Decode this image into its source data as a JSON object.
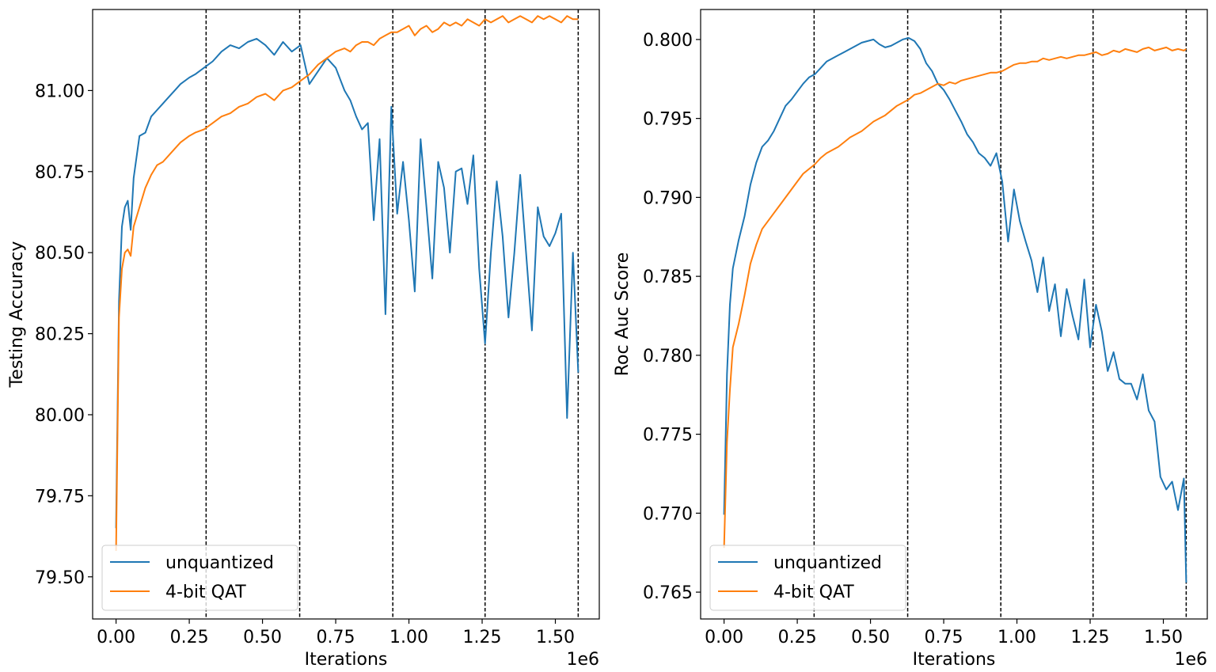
{
  "chart_data": [
    {
      "type": "line",
      "title": "",
      "xlabel": "Iterations",
      "ylabel": "Testing Accuracy",
      "x_offset_text": "1e6",
      "xlim": [
        -0.08,
        1.65
      ],
      "ylim": [
        79.37,
        81.25
      ],
      "xticks": [
        0.0,
        0.25,
        0.5,
        0.75,
        1.0,
        1.25,
        1.5
      ],
      "xtick_labels": [
        "0.00",
        "0.25",
        "0.50",
        "0.75",
        "1.00",
        "1.25",
        "1.50"
      ],
      "yticks": [
        79.5,
        79.75,
        80.0,
        80.25,
        80.5,
        80.75,
        81.0
      ],
      "ytick_labels": [
        "79.50",
        "79.75",
        "80.00",
        "80.25",
        "80.50",
        "80.75",
        "81.00"
      ],
      "vlines": [
        0.3075,
        0.627,
        0.945,
        1.26,
        1.578
      ],
      "legend": {
        "position": "lower-left",
        "entries": [
          "unquantized",
          "4-bit QAT"
        ]
      },
      "series": [
        {
          "name": "unquantized",
          "color": "#1f77b4",
          "x": [
            0.0,
            0.01,
            0.02,
            0.03,
            0.04,
            0.05,
            0.06,
            0.08,
            0.1,
            0.12,
            0.14,
            0.16,
            0.18,
            0.2,
            0.22,
            0.25,
            0.27,
            0.3,
            0.33,
            0.36,
            0.39,
            0.42,
            0.45,
            0.48,
            0.51,
            0.54,
            0.57,
            0.6,
            0.63,
            0.66,
            0.69,
            0.72,
            0.75,
            0.78,
            0.8,
            0.82,
            0.84,
            0.86,
            0.88,
            0.9,
            0.92,
            0.94,
            0.96,
            0.98,
            1.0,
            1.02,
            1.04,
            1.06,
            1.08,
            1.1,
            1.12,
            1.14,
            1.16,
            1.18,
            1.2,
            1.22,
            1.24,
            1.26,
            1.28,
            1.3,
            1.32,
            1.34,
            1.36,
            1.38,
            1.4,
            1.42,
            1.44,
            1.46,
            1.48,
            1.5,
            1.52,
            1.54,
            1.56,
            1.578
          ],
          "y": [
            79.65,
            80.35,
            80.58,
            80.64,
            80.66,
            80.57,
            80.73,
            80.86,
            80.87,
            80.92,
            80.94,
            80.96,
            80.98,
            81.0,
            81.02,
            81.04,
            81.05,
            81.07,
            81.09,
            81.12,
            81.14,
            81.13,
            81.15,
            81.16,
            81.14,
            81.11,
            81.15,
            81.12,
            81.14,
            81.02,
            81.06,
            81.1,
            81.07,
            81.0,
            80.97,
            80.92,
            80.88,
            80.9,
            80.6,
            80.85,
            80.31,
            80.95,
            80.62,
            80.78,
            80.6,
            80.38,
            80.85,
            80.64,
            80.42,
            80.78,
            80.7,
            80.5,
            80.75,
            80.76,
            80.65,
            80.8,
            80.45,
            80.22,
            80.5,
            80.72,
            80.55,
            80.3,
            80.5,
            80.74,
            80.5,
            80.26,
            80.64,
            80.55,
            80.52,
            80.56,
            80.62,
            79.99,
            80.5,
            80.13
          ]
        },
        {
          "name": "4-bit QAT",
          "color": "#ff7f0e",
          "x": [
            0.0,
            0.01,
            0.02,
            0.03,
            0.04,
            0.05,
            0.06,
            0.08,
            0.1,
            0.12,
            0.14,
            0.16,
            0.18,
            0.2,
            0.22,
            0.25,
            0.27,
            0.3,
            0.33,
            0.36,
            0.39,
            0.42,
            0.45,
            0.48,
            0.51,
            0.54,
            0.57,
            0.6,
            0.63,
            0.66,
            0.69,
            0.72,
            0.75,
            0.78,
            0.8,
            0.82,
            0.84,
            0.86,
            0.88,
            0.9,
            0.92,
            0.94,
            0.96,
            0.98,
            1.0,
            1.02,
            1.04,
            1.06,
            1.08,
            1.1,
            1.12,
            1.14,
            1.16,
            1.18,
            1.2,
            1.22,
            1.24,
            1.26,
            1.28,
            1.3,
            1.32,
            1.34,
            1.36,
            1.38,
            1.4,
            1.42,
            1.44,
            1.46,
            1.48,
            1.5,
            1.52,
            1.54,
            1.56,
            1.578
          ],
          "y": [
            79.58,
            80.3,
            80.45,
            80.5,
            80.51,
            80.49,
            80.58,
            80.64,
            80.7,
            80.74,
            80.77,
            80.78,
            80.8,
            80.82,
            80.84,
            80.86,
            80.87,
            80.88,
            80.9,
            80.92,
            80.93,
            80.95,
            80.96,
            80.98,
            80.99,
            80.97,
            81.0,
            81.01,
            81.03,
            81.05,
            81.08,
            81.1,
            81.12,
            81.13,
            81.12,
            81.14,
            81.15,
            81.15,
            81.14,
            81.16,
            81.17,
            81.18,
            81.18,
            81.19,
            81.2,
            81.17,
            81.19,
            81.2,
            81.18,
            81.19,
            81.21,
            81.2,
            81.21,
            81.2,
            81.22,
            81.21,
            81.2,
            81.22,
            81.21,
            81.22,
            81.23,
            81.21,
            81.22,
            81.23,
            81.22,
            81.21,
            81.23,
            81.22,
            81.23,
            81.22,
            81.21,
            81.23,
            81.22,
            81.22
          ]
        }
      ]
    },
    {
      "type": "line",
      "title": "",
      "xlabel": "Iterations",
      "ylabel": "Roc Auc Score",
      "x_offset_text": "1e6",
      "xlim": [
        -0.08,
        1.65
      ],
      "ylim": [
        0.7633,
        0.8019
      ],
      "xticks": [
        0.0,
        0.25,
        0.5,
        0.75,
        1.0,
        1.25,
        1.5
      ],
      "xtick_labels": [
        "0.00",
        "0.25",
        "0.50",
        "0.75",
        "1.00",
        "1.25",
        "1.50"
      ],
      "yticks": [
        0.765,
        0.77,
        0.775,
        0.78,
        0.785,
        0.79,
        0.795,
        0.8
      ],
      "ytick_labels": [
        "0.765",
        "0.770",
        "0.775",
        "0.780",
        "0.785",
        "0.790",
        "0.795",
        "0.800"
      ],
      "vlines": [
        0.3075,
        0.627,
        0.945,
        1.26,
        1.578
      ],
      "legend": {
        "position": "lower-left",
        "entries": [
          "unquantized",
          "4-bit QAT"
        ]
      },
      "series": [
        {
          "name": "unquantized",
          "color": "#1f77b4",
          "x": [
            0.0,
            0.01,
            0.02,
            0.03,
            0.05,
            0.07,
            0.09,
            0.11,
            0.13,
            0.15,
            0.17,
            0.19,
            0.21,
            0.23,
            0.25,
            0.27,
            0.29,
            0.31,
            0.33,
            0.35,
            0.37,
            0.39,
            0.41,
            0.43,
            0.45,
            0.47,
            0.49,
            0.51,
            0.53,
            0.55,
            0.57,
            0.59,
            0.61,
            0.63,
            0.65,
            0.67,
            0.69,
            0.71,
            0.73,
            0.75,
            0.77,
            0.79,
            0.81,
            0.83,
            0.85,
            0.87,
            0.89,
            0.91,
            0.93,
            0.95,
            0.97,
            0.99,
            1.01,
            1.03,
            1.05,
            1.07,
            1.09,
            1.11,
            1.13,
            1.15,
            1.17,
            1.19,
            1.21,
            1.23,
            1.25,
            1.27,
            1.29,
            1.31,
            1.33,
            1.35,
            1.37,
            1.39,
            1.41,
            1.43,
            1.45,
            1.47,
            1.49,
            1.51,
            1.53,
            1.55,
            1.57,
            1.578
          ],
          "y": [
            0.7699,
            0.7788,
            0.7832,
            0.7855,
            0.7873,
            0.7888,
            0.7908,
            0.7922,
            0.7932,
            0.7936,
            0.7942,
            0.795,
            0.7958,
            0.7962,
            0.7967,
            0.7972,
            0.7976,
            0.7978,
            0.7982,
            0.7986,
            0.7988,
            0.799,
            0.7992,
            0.7994,
            0.7996,
            0.7998,
            0.7999,
            0.8,
            0.7997,
            0.7995,
            0.7996,
            0.7998,
            0.8,
            0.8001,
            0.7999,
            0.7994,
            0.7985,
            0.798,
            0.7972,
            0.7968,
            0.7962,
            0.7955,
            0.7948,
            0.794,
            0.7935,
            0.7928,
            0.7925,
            0.792,
            0.7928,
            0.791,
            0.7872,
            0.7905,
            0.7885,
            0.7872,
            0.786,
            0.784,
            0.7862,
            0.7828,
            0.7845,
            0.7812,
            0.7842,
            0.7825,
            0.781,
            0.7848,
            0.7805,
            0.7832,
            0.7815,
            0.779,
            0.7802,
            0.7785,
            0.7782,
            0.7782,
            0.7772,
            0.7788,
            0.7765,
            0.7758,
            0.7723,
            0.7715,
            0.772,
            0.7702,
            0.7722,
            0.7656
          ]
        },
        {
          "name": "4-bit QAT",
          "color": "#ff7f0e",
          "x": [
            0.0,
            0.01,
            0.02,
            0.03,
            0.05,
            0.07,
            0.09,
            0.11,
            0.13,
            0.15,
            0.17,
            0.19,
            0.21,
            0.23,
            0.25,
            0.27,
            0.29,
            0.31,
            0.33,
            0.35,
            0.37,
            0.39,
            0.41,
            0.43,
            0.45,
            0.47,
            0.49,
            0.51,
            0.53,
            0.55,
            0.57,
            0.59,
            0.61,
            0.63,
            0.65,
            0.67,
            0.69,
            0.71,
            0.73,
            0.75,
            0.77,
            0.79,
            0.81,
            0.83,
            0.85,
            0.87,
            0.89,
            0.91,
            0.93,
            0.95,
            0.97,
            0.99,
            1.01,
            1.03,
            1.05,
            1.07,
            1.09,
            1.11,
            1.13,
            1.15,
            1.17,
            1.19,
            1.21,
            1.23,
            1.25,
            1.27,
            1.29,
            1.31,
            1.33,
            1.35,
            1.37,
            1.39,
            1.41,
            1.43,
            1.45,
            1.47,
            1.49,
            1.51,
            1.53,
            1.55,
            1.57,
            1.578
          ],
          "y": [
            0.7678,
            0.7745,
            0.7778,
            0.7805,
            0.782,
            0.7838,
            0.7858,
            0.787,
            0.788,
            0.7885,
            0.789,
            0.7895,
            0.79,
            0.7905,
            0.791,
            0.7915,
            0.7918,
            0.7921,
            0.7925,
            0.7928,
            0.793,
            0.7932,
            0.7935,
            0.7938,
            0.794,
            0.7942,
            0.7945,
            0.7948,
            0.795,
            0.7952,
            0.7955,
            0.7958,
            0.796,
            0.7962,
            0.7965,
            0.7966,
            0.7968,
            0.797,
            0.7972,
            0.7971,
            0.7973,
            0.7972,
            0.7974,
            0.7975,
            0.7976,
            0.7977,
            0.7978,
            0.7979,
            0.7979,
            0.798,
            0.7982,
            0.7984,
            0.7985,
            0.7985,
            0.7986,
            0.7986,
            0.7988,
            0.7987,
            0.7988,
            0.7989,
            0.7988,
            0.7989,
            0.799,
            0.799,
            0.7991,
            0.7992,
            0.799,
            0.7991,
            0.7993,
            0.7992,
            0.7994,
            0.7993,
            0.7992,
            0.7994,
            0.7995,
            0.7993,
            0.7994,
            0.7995,
            0.7993,
            0.7994,
            0.7993,
            0.7994
          ]
        }
      ]
    }
  ]
}
